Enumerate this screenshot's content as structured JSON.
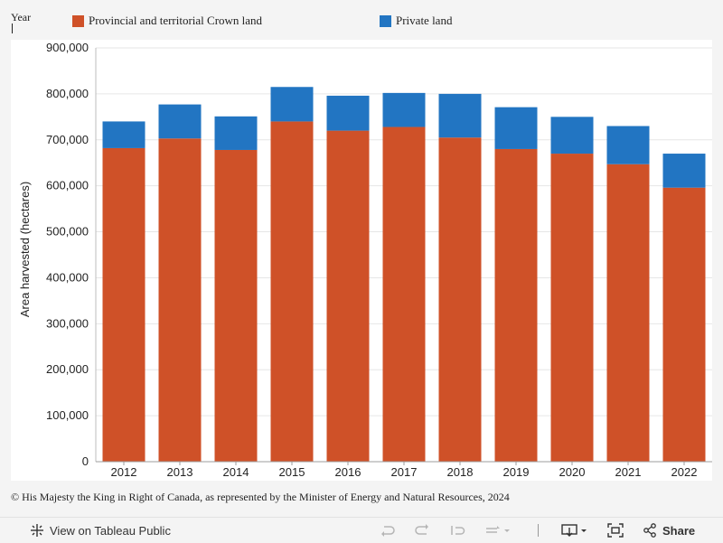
{
  "header": {
    "filter_label": "Year"
  },
  "legend": [
    {
      "label": "Provincial and territorial Crown land",
      "color": "#cf5128"
    },
    {
      "label": "Private land",
      "color": "#2275c2"
    }
  ],
  "chart_data": {
    "type": "bar",
    "stacked": true,
    "categories": [
      "2012",
      "2013",
      "2014",
      "2015",
      "2016",
      "2017",
      "2018",
      "2019",
      "2020",
      "2021",
      "2022"
    ],
    "series": [
      {
        "name": "Provincial and territorial Crown land",
        "color": "#cf5128",
        "values": [
          682000,
          703000,
          678000,
          740000,
          720000,
          728000,
          705000,
          680000,
          670000,
          647000,
          596000
        ]
      },
      {
        "name": "Private land",
        "color": "#2275c2",
        "values": [
          58000,
          74000,
          73000,
          75000,
          76000,
          74000,
          95000,
          91000,
          80000,
          83000,
          74000
        ]
      }
    ],
    "ylabel": "Area harvested (hectares)",
    "xlabel": "",
    "ylim": [
      0,
      900000
    ],
    "yticks": [
      {
        "value": 0,
        "label": "0"
      },
      {
        "value": 100000,
        "label": "100,000"
      },
      {
        "value": 200000,
        "label": "200,000"
      },
      {
        "value": 300000,
        "label": "300,000"
      },
      {
        "value": 400000,
        "label": "400,000"
      },
      {
        "value": 500000,
        "label": "500,000"
      },
      {
        "value": 600000,
        "label": "600,000"
      },
      {
        "value": 700000,
        "label": "700,000"
      },
      {
        "value": 800000,
        "label": "800,000"
      },
      {
        "value": 900000,
        "label": "900,000"
      }
    ],
    "grid": true
  },
  "footer": {
    "copyright": "© His Majesty the King in Right of Canada, as represented by the Minister of Energy and Natural Resources, 2024"
  },
  "toolbar": {
    "view_label": "View on Tableau Public",
    "share_label": "Share"
  }
}
